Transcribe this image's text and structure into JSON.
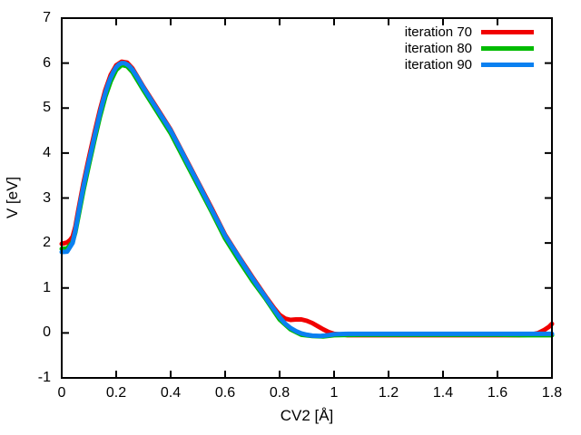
{
  "chart_data": {
    "type": "line",
    "title": "",
    "xlabel": "CV2 [Å]",
    "ylabel": "V [eV]",
    "xlim": [
      0,
      1.8
    ],
    "ylim": [
      -1,
      7
    ],
    "grid": false,
    "legend_position": "top-right-inside",
    "background_color": "#ffffff",
    "axis_color": "#000000",
    "xtick_labels": [
      "0",
      "0.2",
      "0.4",
      "0.6",
      "0.8",
      "1",
      "1.2",
      "1.4",
      "1.6",
      "1.8"
    ],
    "xtick_values": [
      0,
      0.2,
      0.4,
      0.6,
      0.8,
      1.0,
      1.2,
      1.4,
      1.6,
      1.8
    ],
    "ytick_labels": [
      "-1",
      "0",
      "1",
      "2",
      "3",
      "4",
      "5",
      "6",
      "7"
    ],
    "ytick_values": [
      -1,
      0,
      1,
      2,
      3,
      4,
      5,
      6,
      7
    ],
    "series": [
      {
        "name": "iteration 70",
        "color": "#f10000",
        "points": [
          [
            0.0,
            1.98
          ],
          [
            0.02,
            2.01
          ],
          [
            0.03,
            2.06
          ],
          [
            0.04,
            2.14
          ],
          [
            0.05,
            2.36
          ],
          [
            0.06,
            2.7
          ],
          [
            0.08,
            3.34
          ],
          [
            0.1,
            3.9
          ],
          [
            0.12,
            4.44
          ],
          [
            0.14,
            4.95
          ],
          [
            0.16,
            5.4
          ],
          [
            0.18,
            5.74
          ],
          [
            0.2,
            5.95
          ],
          [
            0.22,
            6.03
          ],
          [
            0.24,
            6.01
          ],
          [
            0.26,
            5.88
          ],
          [
            0.3,
            5.47
          ],
          [
            0.35,
            5.0
          ],
          [
            0.4,
            4.52
          ],
          [
            0.45,
            3.94
          ],
          [
            0.5,
            3.36
          ],
          [
            0.55,
            2.78
          ],
          [
            0.6,
            2.18
          ],
          [
            0.65,
            1.7
          ],
          [
            0.7,
            1.24
          ],
          [
            0.75,
            0.8
          ],
          [
            0.78,
            0.55
          ],
          [
            0.8,
            0.4
          ],
          [
            0.82,
            0.32
          ],
          [
            0.84,
            0.29
          ],
          [
            0.86,
            0.3
          ],
          [
            0.88,
            0.3
          ],
          [
            0.9,
            0.27
          ],
          [
            0.92,
            0.22
          ],
          [
            0.94,
            0.15
          ],
          [
            0.96,
            0.08
          ],
          [
            0.98,
            0.02
          ],
          [
            1.0,
            -0.02
          ],
          [
            1.05,
            -0.05
          ],
          [
            1.1,
            -0.05
          ],
          [
            1.2,
            -0.05
          ],
          [
            1.3,
            -0.05
          ],
          [
            1.4,
            -0.05
          ],
          [
            1.5,
            -0.05
          ],
          [
            1.6,
            -0.05
          ],
          [
            1.68,
            -0.05
          ],
          [
            1.72,
            -0.04
          ],
          [
            1.75,
            0.0
          ],
          [
            1.77,
            0.06
          ],
          [
            1.79,
            0.14
          ],
          [
            1.8,
            0.2
          ]
        ]
      },
      {
        "name": "iteration 80",
        "color": "#00bb00",
        "points": [
          [
            0.0,
            1.87
          ],
          [
            0.02,
            1.88
          ],
          [
            0.04,
            2.02
          ],
          [
            0.05,
            2.24
          ],
          [
            0.06,
            2.55
          ],
          [
            0.08,
            3.18
          ],
          [
            0.1,
            3.74
          ],
          [
            0.12,
            4.28
          ],
          [
            0.14,
            4.8
          ],
          [
            0.16,
            5.25
          ],
          [
            0.18,
            5.6
          ],
          [
            0.2,
            5.85
          ],
          [
            0.22,
            5.96
          ],
          [
            0.24,
            5.93
          ],
          [
            0.26,
            5.8
          ],
          [
            0.3,
            5.4
          ],
          [
            0.35,
            4.92
          ],
          [
            0.4,
            4.44
          ],
          [
            0.45,
            3.86
          ],
          [
            0.5,
            3.28
          ],
          [
            0.55,
            2.7
          ],
          [
            0.6,
            2.1
          ],
          [
            0.65,
            1.62
          ],
          [
            0.7,
            1.16
          ],
          [
            0.75,
            0.75
          ],
          [
            0.8,
            0.3
          ],
          [
            0.84,
            0.08
          ],
          [
            0.88,
            -0.04
          ],
          [
            0.92,
            -0.07
          ],
          [
            0.96,
            -0.08
          ],
          [
            1.0,
            -0.05
          ],
          [
            1.1,
            -0.04
          ],
          [
            1.2,
            -0.04
          ],
          [
            1.4,
            -0.04
          ],
          [
            1.6,
            -0.04
          ],
          [
            1.7,
            -0.05
          ],
          [
            1.8,
            -0.05
          ]
        ]
      },
      {
        "name": "iteration 90",
        "color": "#0a80f0",
        "points": [
          [
            0.0,
            1.8
          ],
          [
            0.02,
            1.81
          ],
          [
            0.04,
            2.0
          ],
          [
            0.05,
            2.28
          ],
          [
            0.06,
            2.62
          ],
          [
            0.07,
            2.95
          ],
          [
            0.08,
            3.26
          ],
          [
            0.09,
            3.55
          ],
          [
            0.1,
            3.82
          ],
          [
            0.11,
            4.09
          ],
          [
            0.12,
            4.36
          ],
          [
            0.13,
            4.62
          ],
          [
            0.14,
            4.88
          ],
          [
            0.15,
            5.12
          ],
          [
            0.16,
            5.33
          ],
          [
            0.17,
            5.52
          ],
          [
            0.18,
            5.68
          ],
          [
            0.19,
            5.81
          ],
          [
            0.2,
            5.91
          ],
          [
            0.21,
            5.97
          ],
          [
            0.22,
            6.0
          ],
          [
            0.23,
            6.0
          ],
          [
            0.24,
            5.97
          ],
          [
            0.25,
            5.92
          ],
          [
            0.26,
            5.85
          ],
          [
            0.28,
            5.66
          ],
          [
            0.3,
            5.45
          ],
          [
            0.32,
            5.26
          ],
          [
            0.34,
            5.07
          ],
          [
            0.36,
            4.88
          ],
          [
            0.38,
            4.69
          ],
          [
            0.4,
            4.5
          ],
          [
            0.42,
            4.27
          ],
          [
            0.44,
            4.04
          ],
          [
            0.46,
            3.8
          ],
          [
            0.48,
            3.57
          ],
          [
            0.5,
            3.34
          ],
          [
            0.52,
            3.1
          ],
          [
            0.54,
            2.87
          ],
          [
            0.56,
            2.63
          ],
          [
            0.58,
            2.4
          ],
          [
            0.6,
            2.16
          ],
          [
            0.62,
            1.97
          ],
          [
            0.64,
            1.78
          ],
          [
            0.66,
            1.59
          ],
          [
            0.68,
            1.4
          ],
          [
            0.7,
            1.22
          ],
          [
            0.72,
            1.04
          ],
          [
            0.74,
            0.87
          ],
          [
            0.76,
            0.69
          ],
          [
            0.78,
            0.52
          ],
          [
            0.8,
            0.35
          ],
          [
            0.82,
            0.21
          ],
          [
            0.84,
            0.11
          ],
          [
            0.86,
            0.04
          ],
          [
            0.88,
            -0.01
          ],
          [
            0.9,
            -0.04
          ],
          [
            0.92,
            -0.06
          ],
          [
            0.95,
            -0.07
          ],
          [
            0.98,
            -0.05
          ],
          [
            1.0,
            -0.03
          ],
          [
            1.05,
            -0.02
          ],
          [
            1.1,
            -0.02
          ],
          [
            1.2,
            -0.02
          ],
          [
            1.3,
            -0.02
          ],
          [
            1.4,
            -0.02
          ],
          [
            1.5,
            -0.02
          ],
          [
            1.6,
            -0.02
          ],
          [
            1.7,
            -0.02
          ],
          [
            1.8,
            -0.02
          ]
        ]
      }
    ]
  }
}
